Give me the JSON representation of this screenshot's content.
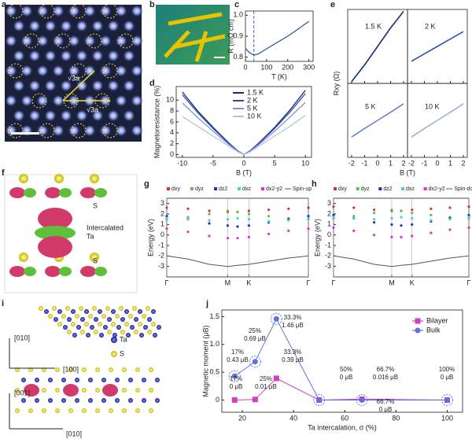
{
  "panel_a": {
    "panel": "a",
    "annotations": [
      "√3a",
      "√3a"
    ]
  },
  "panel_b": {
    "panel": "b"
  },
  "panel_f": {
    "panel": "f",
    "annotations": [
      "S",
      "Intercalated",
      "Ta",
      "S"
    ]
  },
  "panel_i": {
    "panel": "i",
    "annotations": [
      "[010]",
      "[100]",
      "Ta",
      "S",
      "[001]",
      "[010]"
    ]
  },
  "chart_data": [
    {
      "panel": "c",
      "type": "line",
      "x_label": "T (K)",
      "y_label": "R (mΩ cm)",
      "x": [
        2,
        20,
        40,
        60,
        100,
        150,
        200,
        250,
        300
      ],
      "values": [
        0.84,
        0.82,
        0.81,
        0.815,
        0.84,
        0.87,
        0.9,
        0.935,
        0.97
      ],
      "color": "#2a4d9b",
      "dashed_line_x": 40,
      "dashed_color": "#3a5fd0",
      "xlim": [
        0,
        320
      ],
      "ylim": [
        0.78,
        1.02
      ],
      "xticks": [
        0,
        100,
        200,
        300
      ],
      "yticks": [
        0.8,
        0.9,
        {
          "value": 1,
          "label": "1.0"
        }
      ]
    },
    {
      "panel": "d",
      "type": "line",
      "x_label": "B (T)",
      "y_label": "Magnetoresistance (%)",
      "x": [
        -10,
        -7.5,
        -5,
        -2.5,
        -1,
        0,
        1,
        2.5,
        5,
        7.5,
        10
      ],
      "series": [
        {
          "name": "1.5 K",
          "color": "#1a2a7a",
          "values": [
            11.5,
            8,
            5,
            2.2,
            0.7,
            0,
            0.7,
            2.2,
            5,
            8.2,
            11.8
          ]
        },
        {
          "name": "2 K",
          "color": "#2a4db0",
          "values": [
            11,
            7.7,
            4.8,
            2.1,
            0.65,
            0,
            0.65,
            2.1,
            4.8,
            7.8,
            11.2
          ]
        },
        {
          "name": "5 K",
          "color": "#8090d0",
          "values": [
            9.5,
            6.8,
            4.3,
            1.9,
            0.6,
            0,
            0.6,
            1.9,
            4.3,
            6.9,
            9.6
          ]
        },
        {
          "name": "10 K",
          "color": "#b8c0e8",
          "values": [
            7,
            5.2,
            3.4,
            1.6,
            0.5,
            0,
            0.5,
            1.6,
            3.4,
            5.2,
            7.2
          ]
        }
      ],
      "legend": "top-center",
      "xlim": [
        -11,
        11
      ],
      "ylim": [
        -0.5,
        12.5
      ],
      "xticks": [
        -10,
        -5,
        0,
        5,
        10
      ],
      "yticks": [
        0,
        2,
        4,
        6,
        8,
        10
      ]
    },
    {
      "panel": "e",
      "type": "small-multiples",
      "x_label": "B (T)",
      "y_label": "Rxy (Ω)",
      "xlim": [
        -2.3,
        2.3
      ],
      "ylim": [
        -1,
        1
      ],
      "xticks": [
        -2,
        -1,
        0,
        1,
        2
      ],
      "series": [
        {
          "name": "1.5 K",
          "color": "#1a2a7a",
          "x": [
            -2,
            -1,
            0,
            1,
            2
          ],
          "values": [
            -0.95,
            -0.5,
            0,
            0.5,
            0.95
          ]
        },
        {
          "name": "2 K",
          "color": "#3050b8",
          "x": [
            -2,
            -1,
            0,
            1,
            2
          ],
          "values": [
            -0.4,
            -0.2,
            0,
            0.2,
            0.4
          ]
        },
        {
          "name": "5 K",
          "color": "#6a80d0",
          "x": [
            -2,
            -1,
            0,
            1,
            2
          ],
          "values": [
            -0.45,
            -0.22,
            0,
            0.22,
            0.45
          ]
        },
        {
          "name": "10 K",
          "color": "#a0acdf",
          "x": [
            -2,
            -1,
            0,
            1,
            2
          ],
          "values": [
            -0.45,
            -0.22,
            0,
            0.22,
            0.45
          ]
        }
      ]
    },
    {
      "panel": "g",
      "type": "bands",
      "y_label": "Energy (eV)",
      "x": [
        0,
        0.15,
        0.3,
        0.43,
        0.5,
        0.58,
        0.72,
        0.86,
        1
      ],
      "series": [
        {
          "name": "dxy",
          "color": "#e03030",
          "marker": "dot",
          "values": [
            2.6,
            2.5,
            2.3,
            2.2,
            2.2,
            2.3,
            2.4,
            2.5,
            2.6
          ]
        },
        {
          "name": "dyz",
          "color": "#60c040",
          "marker": "dot",
          "values": [
            1.5,
            1.7,
            2,
            2.3,
            2.2,
            2,
            1.8,
            1.6,
            1.5
          ]
        },
        {
          "name": "dz2",
          "color": "#2030c0",
          "marker": "dot",
          "values": [
            1.8,
            1.5,
            1.1,
            0.9,
            0.8,
            0.9,
            1.2,
            1.5,
            1.8
          ]
        },
        {
          "name": "dxz",
          "color": "#40d0e0",
          "marker": "dot",
          "values": [
            1.6,
            1.5,
            1.4,
            1.5,
            1.6,
            1.5,
            1.3,
            1.4,
            1.6
          ]
        },
        {
          "name": "dx2-y2",
          "color": "#e030d0",
          "marker": "dot",
          "values": [
            0.6,
            0.3,
            -0.1,
            -0.3,
            -0.3,
            -0.2,
            0.1,
            0.4,
            0.6
          ]
        },
        {
          "name": "Spin-up",
          "color": "#555555",
          "marker": "none",
          "values": [
            -2,
            -2.3,
            -2.8,
            -3,
            -2.9,
            -2.8,
            -2.5,
            -2.2,
            -2
          ]
        }
      ],
      "xlim": [
        0,
        1
      ],
      "ylim": [
        -4,
        3.5
      ],
      "xticks": [
        {
          "value": 0,
          "label": "Γ"
        },
        {
          "value": 0.43,
          "label": "M"
        },
        {
          "value": 0.58,
          "label": "K"
        },
        {
          "value": 1,
          "label": "Γ"
        }
      ],
      "yticks": [
        -3,
        -2,
        -1,
        0,
        1,
        2,
        3
      ]
    },
    {
      "panel": "h",
      "type": "bands",
      "y_label": "Energy (eV)",
      "x": [
        0,
        0.15,
        0.3,
        0.43,
        0.5,
        0.58,
        0.72,
        0.86,
        1
      ],
      "series": [
        {
          "name": "dxy",
          "color": "#e03030",
          "marker": "dot",
          "values": [
            2.7,
            2.6,
            2.4,
            2.3,
            2.3,
            2.4,
            2.5,
            2.6,
            2.7
          ]
        },
        {
          "name": "dyz",
          "color": "#60c040",
          "marker": "dot",
          "values": [
            1.6,
            1.8,
            2.1,
            2.4,
            2.3,
            2.1,
            1.9,
            1.7,
            1.6
          ]
        },
        {
          "name": "dz2",
          "color": "#2030c0",
          "marker": "dot",
          "values": [
            1.9,
            1.6,
            1.2,
            1,
            0.9,
            1,
            1.3,
            1.6,
            1.9
          ]
        },
        {
          "name": "dxz",
          "color": "#40d0e0",
          "marker": "dot",
          "values": [
            1.7,
            1.6,
            1.5,
            1.6,
            1.7,
            1.6,
            1.4,
            1.5,
            1.7
          ]
        },
        {
          "name": "dx2-y2",
          "color": "#e030d0",
          "marker": "dot",
          "values": [
            0.7,
            0.4,
            0,
            -0.2,
            -0.2,
            -0.1,
            0.2,
            0.5,
            0.7
          ]
        },
        {
          "name": "Spin-down",
          "color": "#555555",
          "marker": "none",
          "values": [
            -2,
            -2.3,
            -2.8,
            -3,
            -2.9,
            -2.8,
            -2.5,
            -2.2,
            -2
          ]
        }
      ],
      "xlim": [
        0,
        1
      ],
      "ylim": [
        -4,
        3.5
      ],
      "xticks": [
        {
          "value": 0,
          "label": "Γ"
        },
        {
          "value": 0.43,
          "label": "M"
        },
        {
          "value": 0.58,
          "label": "K"
        },
        {
          "value": 1,
          "label": "Γ"
        }
      ],
      "yticks": [
        -3,
        -2,
        -1,
        0,
        1,
        2,
        3
      ]
    },
    {
      "panel": "j",
      "type": "line",
      "x_label": "Ta intercalation, σ (%)",
      "y_label": "Magnetic moment (μB)",
      "x": [
        17,
        25,
        33.3,
        50,
        66.7,
        100
      ],
      "series": [
        {
          "name": "Bilayer",
          "color": "#d040c0",
          "marker": "square",
          "values": [
            0,
            0.01,
            0.39,
            0,
            0.016,
            0
          ]
        },
        {
          "name": "Bulk",
          "color": "#6070e0",
          "marker": "circle",
          "values": [
            0.43,
            0.69,
            1.46,
            0,
            0,
            0
          ]
        }
      ],
      "legend": "top-right",
      "annotations": [
        [
          "17%",
          "0.43 μB"
        ],
        [
          "25%",
          "0.69 μB"
        ],
        [
          "33.3%",
          "1.46 μB"
        ],
        [
          "33.3%",
          "0.39 μB"
        ],
        [
          "25%",
          "0.01 μB"
        ],
        [
          "17%",
          "0 μB"
        ],
        [
          "50%",
          "0 μB"
        ],
        [
          "66.7%",
          "0.016 μB"
        ],
        [
          "66.7%",
          "0 μB"
        ],
        [
          "100%",
          "0 μB"
        ]
      ],
      "xlim": [
        12,
        106
      ],
      "ylim": [
        -0.22,
        1.62
      ],
      "xticks": [
        20,
        40,
        60,
        80,
        100
      ],
      "yticks": [
        0,
        0.5,
        {
          "value": 1,
          "label": "1.0"
        },
        1.5
      ]
    }
  ]
}
